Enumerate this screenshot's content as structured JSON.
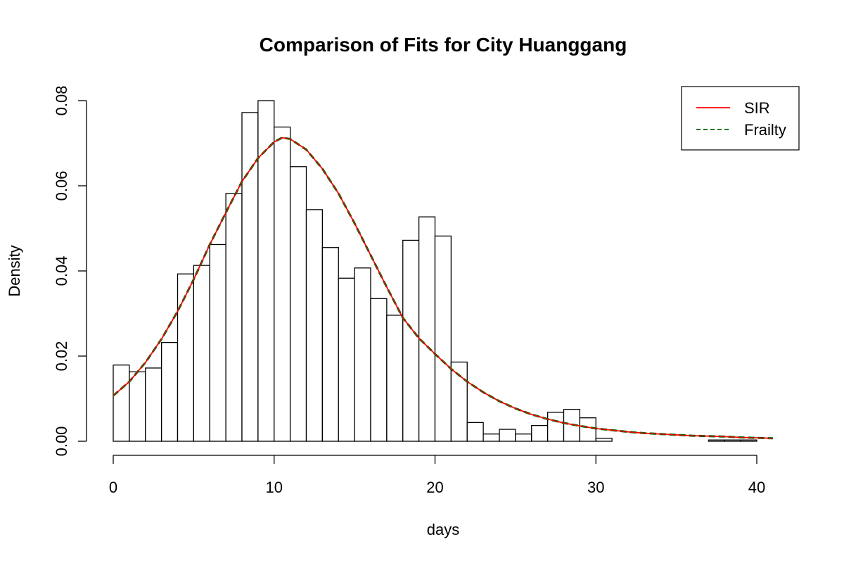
{
  "chart_data": {
    "type": "bar",
    "title": "Comparison of Fits for City Huanggang",
    "xlabel": "days",
    "ylabel": "Density",
    "xlim": [
      0,
      41
    ],
    "ylim": [
      0,
      0.08
    ],
    "x_ticks": [
      0,
      10,
      20,
      30,
      40
    ],
    "x_tick_labels": [
      "0",
      "10",
      "20",
      "30",
      "40"
    ],
    "y_ticks": [
      0,
      0.02,
      0.04,
      0.06,
      0.08
    ],
    "y_tick_labels": [
      "0.00",
      "0.02",
      "0.04",
      "0.06",
      "0.08"
    ],
    "grid": false,
    "legend_position": "top-right",
    "histogram": {
      "bin_width": 1,
      "bin_start": 0,
      "densities": [
        0.0179,
        0.0163,
        0.0172,
        0.0232,
        0.0393,
        0.0413,
        0.0462,
        0.0582,
        0.0772,
        0.08,
        0.0738,
        0.0645,
        0.0544,
        0.0455,
        0.0383,
        0.0407,
        0.0335,
        0.0296,
        0.0472,
        0.0527,
        0.0482,
        0.0186,
        0.0044,
        0.0017,
        0.0028,
        0.0017,
        0.0037,
        0.0068,
        0.0075,
        0.0055,
        0.0007,
        0,
        0,
        0,
        0,
        0,
        0,
        0.0003,
        0.0003,
        0.0003
      ]
    },
    "series": [
      {
        "name": "SIR",
        "color": "#ff0000",
        "style": "solid",
        "x": [
          0,
          1,
          2,
          3,
          4,
          5,
          6,
          7,
          8,
          9,
          10,
          10.5,
          11,
          12,
          13,
          14,
          15,
          16,
          17,
          18,
          19,
          20,
          21,
          22,
          23,
          24,
          25,
          26,
          27,
          28,
          29,
          30,
          31,
          32,
          33,
          34,
          35,
          36,
          37,
          38,
          39,
          40,
          41
        ],
        "values": [
          0.0107,
          0.014,
          0.0185,
          0.024,
          0.0305,
          0.038,
          0.0462,
          0.0537,
          0.061,
          0.0665,
          0.0703,
          0.0713,
          0.071,
          0.0685,
          0.064,
          0.0582,
          0.0512,
          0.0437,
          0.0362,
          0.029,
          0.0242,
          0.0205,
          0.017,
          0.014,
          0.0115,
          0.0094,
          0.0077,
          0.0063,
          0.0052,
          0.0043,
          0.0036,
          0.003,
          0.0026,
          0.0022,
          0.0019,
          0.0017,
          0.0015,
          0.0013,
          0.0012,
          0.0011,
          0.0009,
          0.0008,
          0.0007
        ]
      },
      {
        "name": "Frailty",
        "color": "#006400",
        "style": "dashed",
        "x": [
          0,
          1,
          2,
          3,
          4,
          5,
          6,
          7,
          8,
          9,
          10,
          10.5,
          11,
          12,
          13,
          14,
          15,
          16,
          17,
          18,
          19,
          20,
          21,
          22,
          23,
          24,
          25,
          26,
          27,
          28,
          29,
          30,
          31,
          32,
          33,
          34,
          35,
          36,
          37,
          38,
          39,
          40,
          41
        ],
        "values": [
          0.0107,
          0.014,
          0.0185,
          0.024,
          0.0305,
          0.038,
          0.0462,
          0.0537,
          0.061,
          0.0665,
          0.0703,
          0.0713,
          0.071,
          0.0685,
          0.064,
          0.0582,
          0.0512,
          0.0437,
          0.0362,
          0.029,
          0.0242,
          0.0205,
          0.017,
          0.014,
          0.0115,
          0.0094,
          0.0077,
          0.0063,
          0.0052,
          0.0043,
          0.0036,
          0.003,
          0.0026,
          0.0022,
          0.0019,
          0.0017,
          0.0015,
          0.0013,
          0.0012,
          0.0011,
          0.0009,
          0.0008,
          0.0007
        ]
      }
    ]
  }
}
